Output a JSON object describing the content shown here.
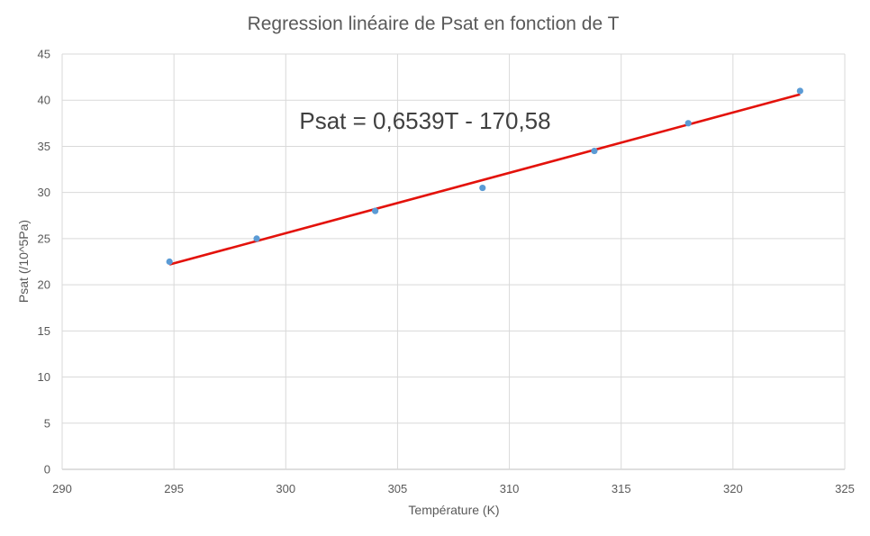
{
  "chart_data": {
    "type": "scatter",
    "title": "Regression linéaire de Psat en fonction de T",
    "xlabel": "Température (K)",
    "ylabel": "Psat (/10^5Pa)",
    "xlim": [
      290,
      325
    ],
    "ylim": [
      0,
      45
    ],
    "xticks": [
      "290",
      "295",
      "300",
      "305",
      "310",
      "315",
      "320",
      "325"
    ],
    "yticks": [
      "0",
      "5",
      "10",
      "15",
      "20",
      "25",
      "30",
      "35",
      "40",
      "45"
    ],
    "grid": true,
    "series": [
      {
        "x": [
          294.8,
          298.7,
          304.0,
          308.8,
          313.8,
          318.0,
          323.0
        ],
        "y": [
          22.5,
          25.0,
          28.0,
          30.5,
          34.5,
          37.5,
          41.0
        ],
        "color": "#5b9bd5"
      }
    ],
    "trendline": {
      "slope": 0.6539,
      "intercept": -170.58,
      "x_range": [
        294.8,
        323.0
      ],
      "color": "#e3120b",
      "equation": "Psat = 0,6539T - 170,58"
    }
  }
}
